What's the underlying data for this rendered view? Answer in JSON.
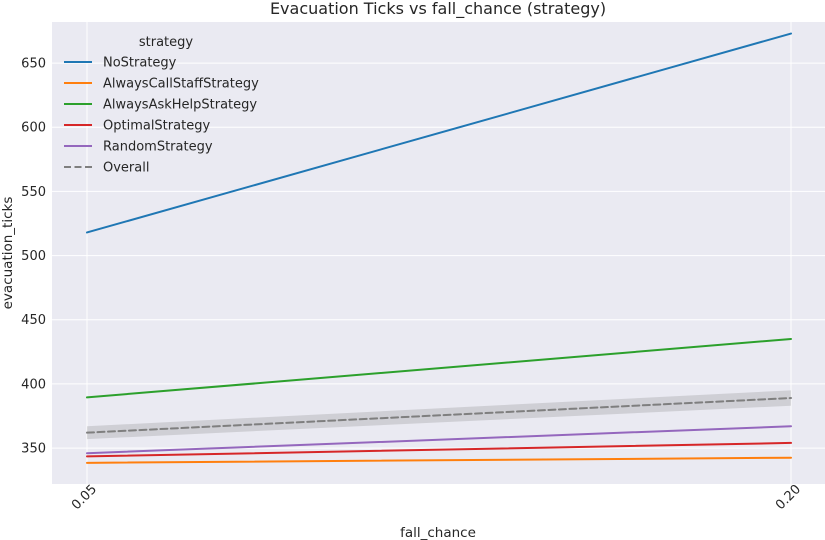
{
  "chart_data": {
    "type": "line",
    "title": "Evacuation Ticks vs fall_chance (strategy)",
    "xlabel": "fall_chance",
    "ylabel": "evacuation_ticks",
    "x": [
      0.05,
      0.2
    ],
    "x_tick_labels": [
      "0.05",
      "0.20"
    ],
    "ylim": [
      322,
      682
    ],
    "y_ticks": [
      350,
      400,
      450,
      500,
      550,
      600,
      650
    ],
    "grid": true,
    "legend": {
      "title": "strategy",
      "placement": "top-left"
    },
    "series": [
      {
        "name": "NoStrategy",
        "values": [
          518,
          673
        ],
        "color": "#1f77b4",
        "style": "solid"
      },
      {
        "name": "AlwaysCallStaffStrategy",
        "values": [
          338.5,
          342.5
        ],
        "color": "#ff7f0e",
        "style": "solid"
      },
      {
        "name": "AlwaysAskHelpStrategy",
        "values": [
          389.5,
          435
        ],
        "color": "#2ca02c",
        "style": "solid"
      },
      {
        "name": "OptimalStrategy",
        "values": [
          343.5,
          354
        ],
        "color": "#d62728",
        "style": "solid"
      },
      {
        "name": "RandomStrategy",
        "values": [
          346,
          367
        ],
        "color": "#9467bd",
        "style": "solid"
      },
      {
        "name": "Overall",
        "values": [
          362,
          389
        ],
        "ci_lower": [
          357,
          383
        ],
        "ci_upper": [
          367,
          395
        ],
        "color": "#7f7f7f",
        "style": "dashed"
      }
    ]
  }
}
